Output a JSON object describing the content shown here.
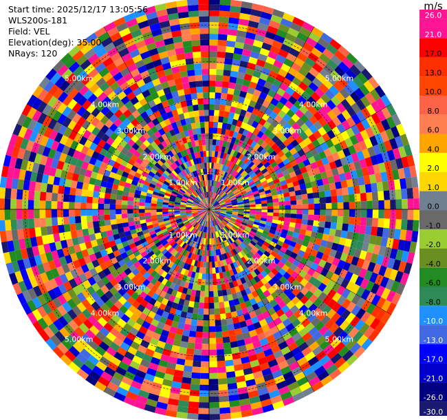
{
  "info": {
    "start_time": "Start time: 2025/12/17 13:05:56",
    "station": "WLS200s-181",
    "field": "Field: VEL",
    "elevation": "Elevation(deg): 35.00",
    "nrays": "NRays: 120"
  },
  "colorbar": {
    "unit": "m/s",
    "ticks": [
      "26.0",
      "21.0",
      "17.0",
      "13.0",
      "10.0",
      "8.0",
      "6.0",
      "4.0",
      "2.0",
      "1.0",
      "0.0",
      "-1.0",
      "-2.0",
      "-4.0",
      "-6.0",
      "-8.0",
      "-10.0",
      "-13.0",
      "-17.0",
      "-21.0",
      "-26.0",
      "-30.0"
    ],
    "colors": [
      "#ff1493",
      "#ff1493",
      "#ff0000",
      "#ff3000",
      "#ff4500",
      "#ff6347",
      "#ff7f50",
      "#ffa500",
      "#ffff00",
      "#ffd700",
      "#708090",
      "#696969",
      "#9acd32",
      "#6b8e23",
      "#228b22",
      "#2e8b57",
      "#1e90ff",
      "#4169e1",
      "#0000ff",
      "#0000cd",
      "#000080",
      "#191970"
    ]
  },
  "chart_data": {
    "type": "heatmap",
    "projection": "polar-ppi",
    "field": "VEL",
    "units": "m/s",
    "elevation_deg": 35.0,
    "n_rays": 120,
    "range_rings_km": [
      "1.00km",
      "2.00km",
      "3.00km",
      "4.00km",
      "5.00km"
    ],
    "color_scale_min": -30.0,
    "color_scale_max": 26.0
  }
}
